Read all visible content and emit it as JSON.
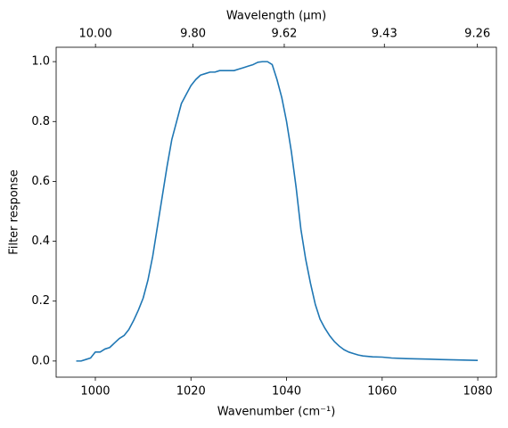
{
  "chart_data": {
    "type": "line",
    "xlabel": "Wavenumber (cm⁻¹)",
    "ylabel": "Filter response",
    "x2label": "Wavelength (μm)",
    "color": "#1f77b4",
    "x": [
      996,
      997,
      998,
      999,
      1000,
      1001,
      1002,
      1003,
      1004,
      1005,
      1006,
      1007,
      1008,
      1009,
      1010,
      1011,
      1012,
      1013,
      1014,
      1015,
      1016,
      1017,
      1018,
      1019,
      1020,
      1021,
      1022,
      1023,
      1024,
      1025,
      1026,
      1027,
      1028,
      1029,
      1030,
      1031,
      1032,
      1033,
      1034,
      1035,
      1036,
      1037,
      1038,
      1039,
      1040,
      1041,
      1042,
      1043,
      1044,
      1045,
      1046,
      1047,
      1048,
      1049,
      1050,
      1051,
      1052,
      1053,
      1054,
      1055,
      1056,
      1058,
      1060,
      1062,
      1065,
      1070,
      1072,
      1075,
      1077,
      1080
    ],
    "values": [
      0,
      0,
      0.005,
      0.01,
      0.03,
      0.03,
      0.04,
      0.045,
      0.06,
      0.075,
      0.085,
      0.105,
      0.135,
      0.17,
      0.21,
      0.27,
      0.35,
      0.45,
      0.55,
      0.65,
      0.74,
      0.8,
      0.86,
      0.89,
      0.92,
      0.94,
      0.955,
      0.96,
      0.965,
      0.965,
      0.97,
      0.97,
      0.97,
      0.97,
      0.975,
      0.98,
      0.985,
      0.99,
      0.998,
      1.0,
      1.0,
      0.99,
      0.94,
      0.88,
      0.8,
      0.7,
      0.58,
      0.44,
      0.34,
      0.26,
      0.19,
      0.14,
      0.11,
      0.085,
      0.065,
      0.05,
      0.038,
      0.03,
      0.025,
      0.02,
      0.017,
      0.014,
      0.013,
      0.01,
      0.008,
      0.006,
      0.005,
      0.004,
      0.003,
      0.002
    ],
    "xlim": [
      991.8,
      1083.9
    ],
    "xticks": [
      1000,
      1020,
      1040,
      1060,
      1080
    ],
    "ylim": [
      -0.054,
      1.048
    ],
    "yticks": [
      {
        "value": 0,
        "label": "0.0"
      },
      0.2,
      0.4,
      0.6,
      0.8,
      {
        "value": 1,
        "label": "1.0"
      }
    ],
    "x2scale": "reciprocal",
    "x2lim": [
      10.083,
      9.226
    ],
    "x2ticks": [
      {
        "value": 10,
        "label": "10.00"
      },
      {
        "value": 9.8,
        "label": "9.80"
      },
      9.62,
      9.43,
      9.26
    ]
  }
}
